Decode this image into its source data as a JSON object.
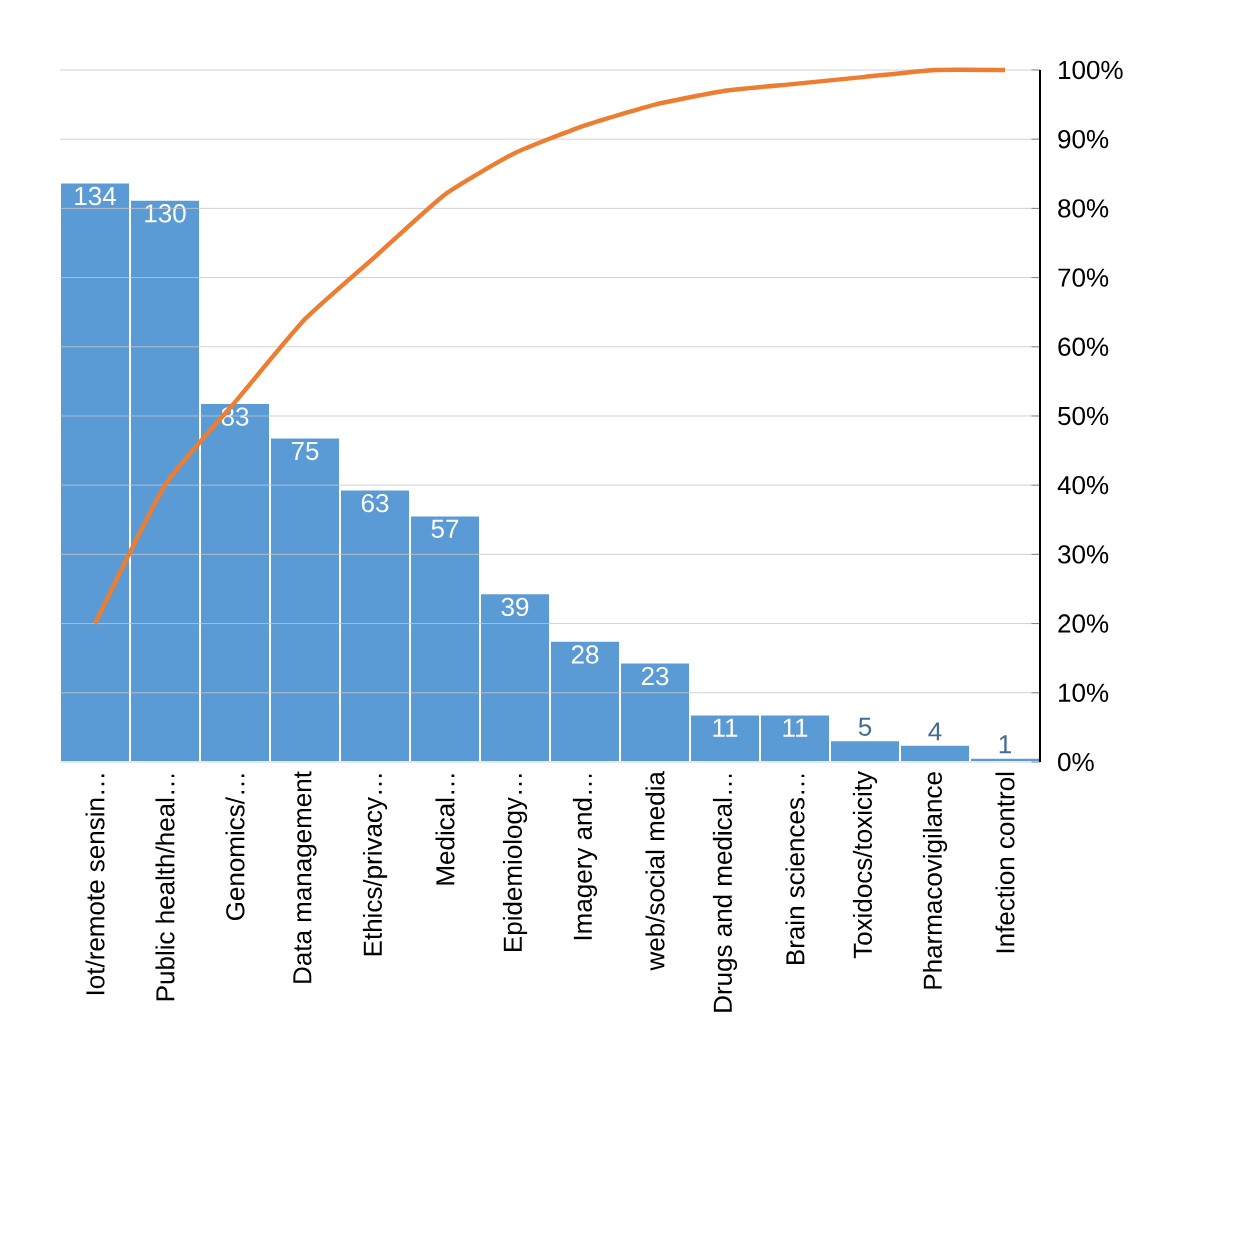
{
  "chart_data": {
    "type": "bar",
    "categories": [
      "Iot/remote sensin…",
      "Public health/heal…",
      "Genomics/…",
      "Data management",
      "Ethics/privacy…",
      "Medical…",
      "Epidemiology…",
      "Imagery and…",
      "web/social media",
      "Drugs and medical…",
      "Brain sciences…",
      "Toxidocs/toxicity",
      "Pharmacovigilance",
      "Infection control"
    ],
    "series": [
      {
        "color": "#5b9bd5",
        "values": [
          134,
          130,
          83,
          75,
          63,
          57,
          39,
          28,
          23,
          11,
          11,
          5,
          4,
          1
        ],
        "value_labels": [
          "134",
          "130",
          "83",
          "75",
          "63",
          "57",
          "39",
          "28",
          "23",
          "11",
          "11",
          "5",
          "4",
          "1"
        ]
      },
      {
        "type": "line",
        "axis": "y2",
        "color": "#ed7d31",
        "values": [
          20,
          40,
          52,
          64,
          73,
          82,
          88,
          92,
          95,
          97,
          98,
          99,
          100,
          100
        ]
      }
    ],
    "ylim": [
      0,
      160
    ],
    "y2lim": [
      0,
      100
    ],
    "y2ticks": [
      {
        "value": 0,
        "label": "0%"
      },
      {
        "value": 10,
        "label": "10%"
      },
      {
        "value": 20,
        "label": "20%"
      },
      {
        "value": 30,
        "label": "30%"
      },
      {
        "value": 40,
        "label": "40%"
      },
      {
        "value": 50,
        "label": "50%"
      },
      {
        "value": 60,
        "label": "60%"
      },
      {
        "value": 70,
        "label": "70%"
      },
      {
        "value": 80,
        "label": "80%"
      },
      {
        "value": 90,
        "label": "90%"
      },
      {
        "value": 100,
        "label": "100%"
      }
    ],
    "grid": "y",
    "line_style": "solid",
    "marker": "none"
  }
}
